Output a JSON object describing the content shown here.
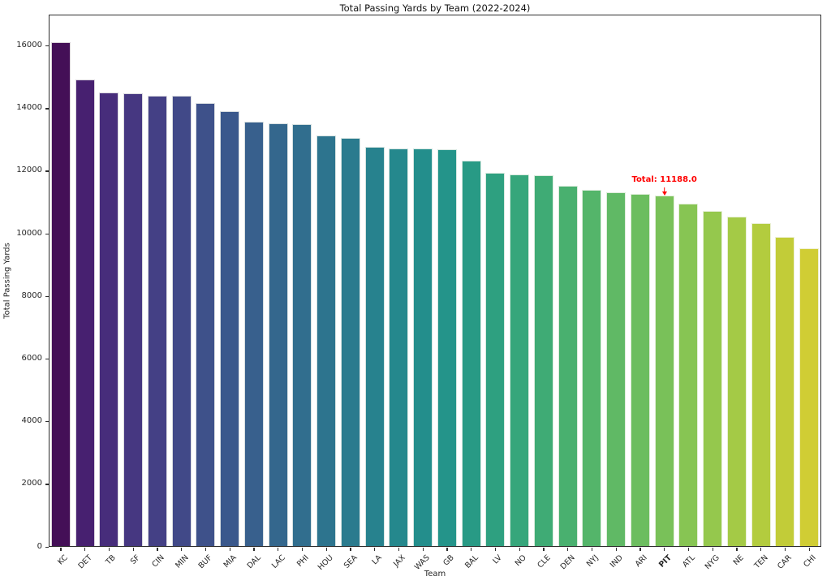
{
  "chart_data": {
    "type": "bar",
    "title": "Total Passing Yards by Team (2022-2024)",
    "xlabel": "Team",
    "ylabel": "Total Passing Yards",
    "ylim": [
      0,
      17000
    ],
    "yticks": [
      0,
      2000,
      4000,
      6000,
      8000,
      10000,
      12000,
      14000,
      16000
    ],
    "grid": false,
    "legend": "none",
    "categories": [
      "KC",
      "DET",
      "TB",
      "SF",
      "CIN",
      "MIN",
      "BUF",
      "MIA",
      "DAL",
      "LAC",
      "PHI",
      "HOU",
      "SEA",
      "LA",
      "JAX",
      "WAS",
      "GB",
      "BAL",
      "LV",
      "NO",
      "CLE",
      "DEN",
      "NYJ",
      "IND",
      "ARI",
      "PIT",
      "ATL",
      "NYG",
      "NE",
      "TEN",
      "CAR",
      "CHI"
    ],
    "values": [
      16090,
      14900,
      14490,
      14450,
      14390,
      14380,
      14160,
      13880,
      13560,
      13490,
      13480,
      13110,
      13040,
      12760,
      12690,
      12690,
      12660,
      12310,
      11910,
      11870,
      11840,
      11510,
      11380,
      11310,
      11250,
      11188,
      10940,
      10700,
      10530,
      10310,
      9870,
      9520
    ],
    "bar_colors": [
      "#440f57",
      "#472070",
      "#472d7b",
      "#463781",
      "#444085",
      "#414988",
      "#3e518a",
      "#3a588c",
      "#38608d",
      "#34678d",
      "#316e8e",
      "#2d748e",
      "#2a7b8e",
      "#27828e",
      "#25888d",
      "#238e8c",
      "#24948a",
      "#289a85",
      "#2ea080",
      "#36a67b",
      "#3fab75",
      "#49b06f",
      "#54b56a",
      "#60b965",
      "#6cbd5f",
      "#79c159",
      "#87c553",
      "#95c84d",
      "#a4ca46",
      "#b3cc3e",
      "#c2cc38",
      "#d0cd34"
    ],
    "highlighted_category": "PIT",
    "annotation": {
      "text": "Total: 11188.0",
      "target_category": "PIT",
      "color": "#ff0000"
    }
  }
}
